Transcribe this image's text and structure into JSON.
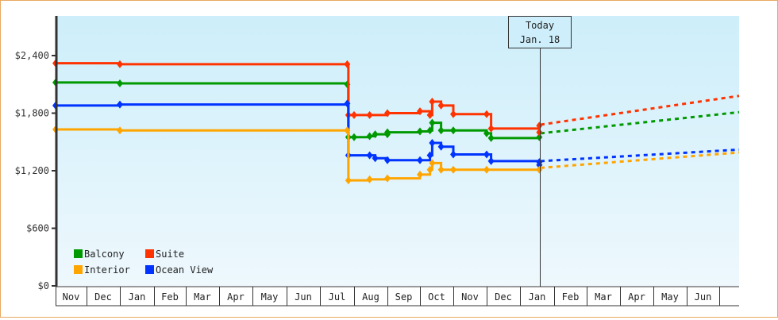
{
  "chart_data": {
    "type": "line",
    "title": "",
    "xlabel": "",
    "ylabel": "",
    "ylim": [
      0,
      2800
    ],
    "y_ticks": [
      {
        "value": 0,
        "label": "$0"
      },
      {
        "value": 600,
        "label": "$600"
      },
      {
        "value": 1200,
        "label": "$1,200"
      },
      {
        "value": 1800,
        "label": "$1,800"
      },
      {
        "value": 2400,
        "label": "$2,400"
      }
    ],
    "x_months": [
      "Nov",
      "Dec",
      "Jan",
      "Feb",
      "Mar",
      "Apr",
      "May",
      "Jun",
      "Jul",
      "Aug",
      "Sep",
      "Oct",
      "Nov",
      "Dec",
      "Jan",
      "Feb",
      "Mar",
      "Apr",
      "May",
      "Jun"
    ],
    "grid": false,
    "legend_position": "bottom-left inside",
    "annotation": {
      "line1": "Today",
      "line2": "Jan. 18"
    },
    "series": [
      {
        "name": "Balcony",
        "color": "#009900",
        "points": [
          [
            "Nov 1",
            2120
          ],
          [
            "Jan 1",
            2110
          ],
          [
            "Jul 25",
            2100
          ],
          [
            "Jul 26",
            1550
          ],
          [
            "Aug 1",
            1550
          ],
          [
            "Aug 15",
            1560
          ],
          [
            "Aug 20",
            1580
          ],
          [
            "Sep 1",
            1580
          ],
          [
            "Sep 1",
            1600
          ],
          [
            "Oct 1",
            1610
          ],
          [
            "Oct 10",
            1620
          ],
          [
            "Oct 12",
            1700
          ],
          [
            "Oct 20",
            1620
          ],
          [
            "Nov 1",
            1620
          ],
          [
            "Dec 1",
            1590
          ],
          [
            "Dec 5",
            1540
          ],
          [
            "Jan 18",
            1550
          ]
        ],
        "forecast": [
          [
            "Jan 18",
            1590
          ],
          [
            "Jul 1",
            1810
          ]
        ]
      },
      {
        "name": "Suite",
        "color": "#ff3300",
        "points": [
          [
            "Nov 1",
            2320
          ],
          [
            "Jan 1",
            2310
          ],
          [
            "Jul 25",
            2310
          ],
          [
            "Jul 26",
            1780
          ],
          [
            "Aug 1",
            1780
          ],
          [
            "Aug 15",
            1780
          ],
          [
            "Sep 1",
            1800
          ],
          [
            "Oct 1",
            1820
          ],
          [
            "Oct 10",
            1780
          ],
          [
            "Oct 12",
            1920
          ],
          [
            "Oct 20",
            1880
          ],
          [
            "Nov 1",
            1790
          ],
          [
            "Dec 1",
            1790
          ],
          [
            "Dec 5",
            1640
          ],
          [
            "Jan 18",
            1600
          ],
          [
            "Jan 18",
            1670
          ]
        ],
        "forecast": [
          [
            "Jan 18",
            1680
          ],
          [
            "Jul 1",
            1980
          ]
        ]
      },
      {
        "name": "Ocean View",
        "color": "#0033ff",
        "points": [
          [
            "Nov 1",
            1880
          ],
          [
            "Jan 1",
            1890
          ],
          [
            "Jul 25",
            1900
          ],
          [
            "Jul 26",
            1360
          ],
          [
            "Aug 15",
            1360
          ],
          [
            "Aug 20",
            1330
          ],
          [
            "Sep 1",
            1310
          ],
          [
            "Oct 1",
            1310
          ],
          [
            "Oct 10",
            1360
          ],
          [
            "Oct 12",
            1490
          ],
          [
            "Oct 20",
            1450
          ],
          [
            "Nov 1",
            1370
          ],
          [
            "Dec 1",
            1370
          ],
          [
            "Dec 5",
            1300
          ],
          [
            "Jan 18",
            1260
          ],
          [
            "Jan 18",
            1290
          ]
        ],
        "forecast": [
          [
            "Jan 18",
            1300
          ],
          [
            "Jul 1",
            1420
          ]
        ]
      },
      {
        "name": "Interior",
        "color": "#ffa500",
        "points": [
          [
            "Nov 1",
            1630
          ],
          [
            "Jan 1",
            1620
          ],
          [
            "Jul 25",
            1620
          ],
          [
            "Jul 26",
            1100
          ],
          [
            "Aug 15",
            1110
          ],
          [
            "Sep 1",
            1120
          ],
          [
            "Oct 1",
            1160
          ],
          [
            "Oct 10",
            1210
          ],
          [
            "Oct 12",
            1280
          ],
          [
            "Oct 20",
            1210
          ],
          [
            "Nov 1",
            1210
          ],
          [
            "Dec 1",
            1210
          ],
          [
            "Jan 18",
            1210
          ]
        ],
        "forecast": [
          [
            "Jan 18",
            1230
          ],
          [
            "Jul 1",
            1390
          ]
        ]
      }
    ]
  },
  "legend": [
    {
      "label": "Balcony",
      "color": "#009900"
    },
    {
      "label": "Suite",
      "color": "#ff3300"
    },
    {
      "label": "Interior",
      "color": "#ffa500"
    },
    {
      "label": "Ocean View",
      "color": "#0033ff"
    }
  ],
  "today_box": {
    "line1": "Today",
    "line2": "Jan. 18"
  }
}
